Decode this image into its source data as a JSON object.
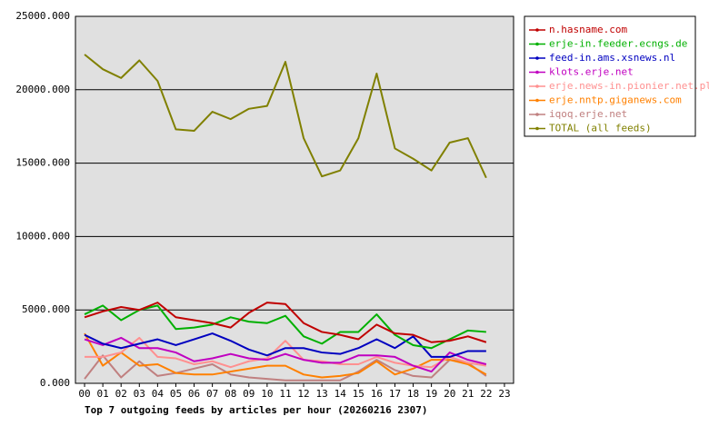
{
  "chart_data": {
    "type": "line",
    "title": "Top 7 outgoing feeds by articles per hour (20260216 2307)",
    "categories": [
      "00",
      "01",
      "02",
      "03",
      "04",
      "05",
      "06",
      "07",
      "08",
      "09",
      "10",
      "11",
      "12",
      "13",
      "14",
      "15",
      "16",
      "17",
      "18",
      "19",
      "20",
      "21",
      "22",
      "23"
    ],
    "ylim": [
      0,
      25000
    ],
    "yticks": [
      {
        "value": 0,
        "label": "0.000"
      },
      {
        "value": 5000,
        "label": "5000.000"
      },
      {
        "value": 10000,
        "label": "10000.000"
      },
      {
        "value": 15000,
        "label": "15000.000"
      },
      {
        "value": 20000,
        "label": "20000.000"
      },
      {
        "value": 25000,
        "label": "25000.000"
      }
    ],
    "grid": true,
    "legend": "right",
    "series": [
      {
        "name": "n.hasname.com",
        "color": "#c00000",
        "values": [
          4500,
          4900,
          5200,
          5000,
          5500,
          4500,
          4300,
          4100,
          3800,
          4800,
          5500,
          5400,
          4100,
          3500,
          3300,
          3000,
          4000,
          3400,
          3300,
          2800,
          2900,
          3200,
          2800,
          null
        ]
      },
      {
        "name": "erje-in.feeder.ecngs.de",
        "color": "#00b000",
        "values": [
          4700,
          5300,
          4300,
          5000,
          5300,
          3700,
          3800,
          4000,
          4500,
          4200,
          4100,
          4600,
          3200,
          2700,
          3500,
          3500,
          4700,
          3300,
          2600,
          2400,
          3000,
          3600,
          3500,
          null
        ]
      },
      {
        "name": "feed-in.ams.xsnews.nl",
        "color": "#0000c0",
        "values": [
          3300,
          2700,
          2400,
          2700,
          3000,
          2600,
          3000,
          3400,
          2900,
          2300,
          1900,
          2400,
          2400,
          2100,
          2000,
          2400,
          3000,
          2400,
          3200,
          1800,
          1800,
          2200,
          2200,
          null
        ]
      },
      {
        "name": "klots.erje.net",
        "color": "#c000c0",
        "values": [
          3000,
          2600,
          3100,
          2400,
          2400,
          2100,
          1500,
          1700,
          2000,
          1700,
          1600,
          2000,
          1600,
          1400,
          1400,
          1900,
          1900,
          1800,
          1200,
          800,
          2100,
          1600,
          1300,
          null
        ]
      },
      {
        "name": "erje.news-in.pionier.net.pl",
        "color": "#ff9090",
        "values": [
          1800,
          1800,
          2100,
          3100,
          1800,
          1700,
          1300,
          1500,
          1100,
          1500,
          1700,
          2900,
          1600,
          1500,
          1300,
          1300,
          1800,
          1400,
          1200,
          1100,
          1800,
          1400,
          1200,
          null
        ]
      },
      {
        "name": "erje.nntp.giganews.com",
        "color": "#ff8000",
        "values": [
          3400,
          1200,
          2100,
          1200,
          1300,
          700,
          600,
          600,
          800,
          1000,
          1200,
          1200,
          600,
          400,
          500,
          700,
          1500,
          600,
          1000,
          1600,
          1600,
          1300,
          600,
          null
        ]
      },
      {
        "name": "iqoq.erje.net",
        "color": "#c08080",
        "values": [
          300,
          1900,
          400,
          1500,
          500,
          700,
          1000,
          1300,
          600,
          400,
          300,
          200,
          200,
          200,
          200,
          800,
          1600,
          900,
          500,
          400,
          1600,
          1400,
          500,
          null
        ]
      },
      {
        "name": "TOTAL (all feeds)",
        "color": "#808000",
        "values": [
          22400,
          21400,
          20800,
          22000,
          20600,
          17300,
          17200,
          18500,
          18000,
          18700,
          18900,
          21900,
          16700,
          14100,
          14500,
          16700,
          21100,
          16000,
          15300,
          14500,
          16400,
          16700,
          14000,
          null
        ]
      }
    ]
  }
}
